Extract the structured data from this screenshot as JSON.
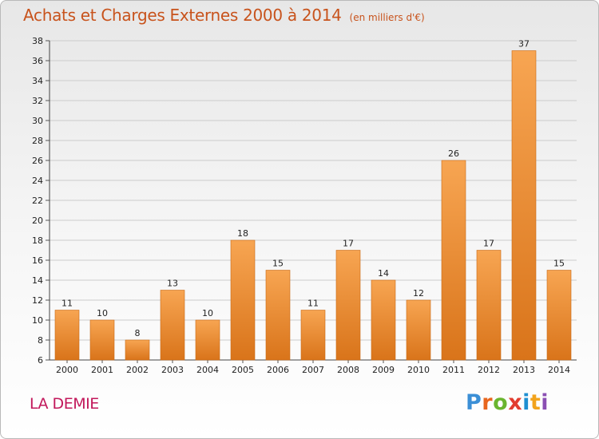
{
  "header": {
    "title": "Achats et Charges Externes 2000 à 2014",
    "subtitle": "(en milliers d'€)"
  },
  "footer": {
    "commune": "LA DEMIE",
    "logo": {
      "letters": [
        "P",
        "r",
        "o",
        "x",
        "i",
        "t",
        "i"
      ],
      "colors": [
        "#3b8fd6",
        "#e8661e",
        "#6ab52f",
        "#e23c2e",
        "#1f8fd1",
        "#f2a31c",
        "#8b4fb3"
      ]
    }
  },
  "colors": {
    "bar_top": "#f7a552",
    "bar_bottom": "#d9741a",
    "axis_text": "#222222",
    "grid": "#cccccc"
  },
  "chart_data": {
    "type": "bar",
    "title": "Achats et Charges Externes 2000 à 2014",
    "subtitle": "(en milliers d'€)",
    "categories": [
      "2000",
      "2001",
      "2002",
      "2003",
      "2004",
      "2005",
      "2006",
      "2007",
      "2008",
      "2009",
      "2010",
      "2011",
      "2012",
      "2013",
      "2014"
    ],
    "values": [
      11,
      10,
      8,
      13,
      10,
      18,
      15,
      11,
      17,
      14,
      12,
      26,
      17,
      37,
      15
    ],
    "ylim": [
      6,
      38
    ],
    "yticks": [
      6,
      8,
      10,
      12,
      14,
      16,
      18,
      20,
      22,
      24,
      26,
      28,
      30,
      32,
      34,
      36,
      38
    ],
    "xlabel": "",
    "ylabel": "",
    "grid": true,
    "data_labels": true
  }
}
